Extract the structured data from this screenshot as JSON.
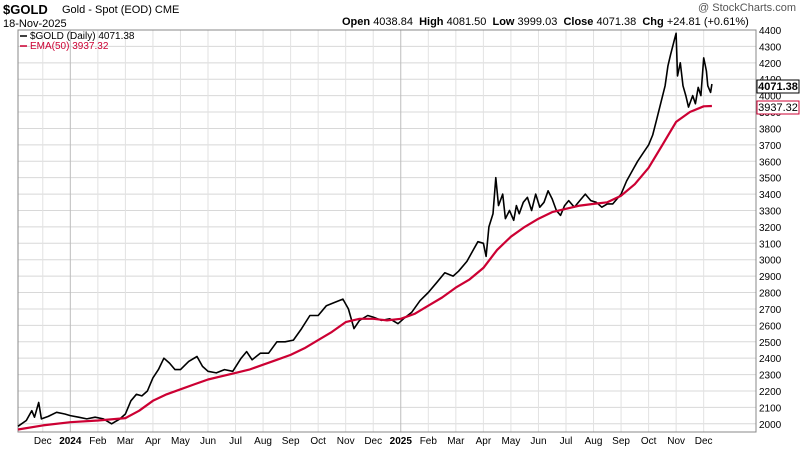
{
  "header": {
    "ticker": "$GOLD",
    "description": "Gold - Spot (EOD)",
    "exchange": "CME",
    "date": "18-Nov-2025",
    "copyright": "@ StockCharts.com",
    "open_label": "Open",
    "open": "4038.84",
    "high_label": "High",
    "high": "4081.50",
    "low_label": "Low",
    "low": "3999.03",
    "close_label": "Close",
    "close": "4071.38",
    "chg_label": "Chg",
    "chg": "+24.81 (+0.61%)"
  },
  "chart_data": {
    "type": "line",
    "title": "$GOLD (Daily) 4071.38",
    "xlabel": "",
    "ylabel": "",
    "ylim": [
      1950,
      4400
    ],
    "y_ticks": [
      2000,
      2100,
      2200,
      2300,
      2400,
      2500,
      2600,
      2700,
      2800,
      2900,
      3000,
      3100,
      3200,
      3300,
      3400,
      3500,
      3600,
      3700,
      3800,
      3900,
      4000,
      4100,
      4200,
      4300,
      4400
    ],
    "x_range_months": [
      -0.9,
      25.9
    ],
    "x_ticks": [
      {
        "label": "Dec",
        "m": 0,
        "bold": false
      },
      {
        "label": "2024",
        "m": 1,
        "bold": true
      },
      {
        "label": "Feb",
        "m": 2,
        "bold": false
      },
      {
        "label": "Mar",
        "m": 3,
        "bold": false
      },
      {
        "label": "Apr",
        "m": 4,
        "bold": false
      },
      {
        "label": "May",
        "m": 5,
        "bold": false
      },
      {
        "label": "Jun",
        "m": 6,
        "bold": false
      },
      {
        "label": "Jul",
        "m": 7,
        "bold": false
      },
      {
        "label": "Aug",
        "m": 8,
        "bold": false
      },
      {
        "label": "Sep",
        "m": 9,
        "bold": false
      },
      {
        "label": "Oct",
        "m": 10,
        "bold": false
      },
      {
        "label": "Nov",
        "m": 11,
        "bold": false
      },
      {
        "label": "Dec",
        "m": 12,
        "bold": false
      },
      {
        "label": "2025",
        "m": 13,
        "bold": true
      },
      {
        "label": "Feb",
        "m": 14,
        "bold": false
      },
      {
        "label": "Mar",
        "m": 15,
        "bold": false
      },
      {
        "label": "Apr",
        "m": 16,
        "bold": false
      },
      {
        "label": "May",
        "m": 17,
        "bold": false
      },
      {
        "label": "Jun",
        "m": 18,
        "bold": false
      },
      {
        "label": "Jul",
        "m": 19,
        "bold": false
      },
      {
        "label": "Aug",
        "m": 20,
        "bold": false
      },
      {
        "label": "Sep",
        "m": 21,
        "bold": false
      },
      {
        "label": "Oct",
        "m": 22,
        "bold": false
      },
      {
        "label": "Nov",
        "m": 23,
        "bold": false
      },
      {
        "label": "Dec",
        "m": 24,
        "bold": false
      }
    ],
    "series": [
      {
        "name": "$GOLD (Daily) 4071.38",
        "label_value": "4071.38",
        "color": "#000000",
        "points": [
          [
            -0.9,
            1985
          ],
          [
            -0.6,
            2020
          ],
          [
            -0.4,
            2080
          ],
          [
            -0.3,
            2040
          ],
          [
            -0.15,
            2130
          ],
          [
            -0.05,
            2030
          ],
          [
            0.2,
            2045
          ],
          [
            0.5,
            2070
          ],
          [
            0.8,
            2060
          ],
          [
            1.0,
            2050
          ],
          [
            1.3,
            2040
          ],
          [
            1.6,
            2030
          ],
          [
            1.9,
            2040
          ],
          [
            2.2,
            2030
          ],
          [
            2.5,
            2000
          ],
          [
            2.8,
            2030
          ],
          [
            3.0,
            2060
          ],
          [
            3.2,
            2140
          ],
          [
            3.4,
            2180
          ],
          [
            3.6,
            2170
          ],
          [
            3.8,
            2200
          ],
          [
            4.0,
            2280
          ],
          [
            4.2,
            2330
          ],
          [
            4.4,
            2400
          ],
          [
            4.6,
            2370
          ],
          [
            4.8,
            2330
          ],
          [
            5.0,
            2330
          ],
          [
            5.3,
            2380
          ],
          [
            5.6,
            2410
          ],
          [
            5.8,
            2350
          ],
          [
            6.0,
            2320
          ],
          [
            6.3,
            2310
          ],
          [
            6.6,
            2330
          ],
          [
            6.9,
            2320
          ],
          [
            7.2,
            2400
          ],
          [
            7.4,
            2440
          ],
          [
            7.6,
            2390
          ],
          [
            7.9,
            2430
          ],
          [
            8.2,
            2430
          ],
          [
            8.5,
            2500
          ],
          [
            8.8,
            2500
          ],
          [
            9.1,
            2510
          ],
          [
            9.4,
            2580
          ],
          [
            9.7,
            2660
          ],
          [
            10.0,
            2660
          ],
          [
            10.3,
            2720
          ],
          [
            10.6,
            2740
          ],
          [
            10.9,
            2760
          ],
          [
            11.1,
            2700
          ],
          [
            11.3,
            2580
          ],
          [
            11.5,
            2630
          ],
          [
            11.8,
            2660
          ],
          [
            12.0,
            2650
          ],
          [
            12.3,
            2630
          ],
          [
            12.6,
            2640
          ],
          [
            12.9,
            2610
          ],
          [
            13.1,
            2640
          ],
          [
            13.4,
            2680
          ],
          [
            13.7,
            2750
          ],
          [
            14.0,
            2800
          ],
          [
            14.3,
            2860
          ],
          [
            14.6,
            2920
          ],
          [
            14.9,
            2900
          ],
          [
            15.1,
            2930
          ],
          [
            15.4,
            2990
          ],
          [
            15.6,
            3050
          ],
          [
            15.8,
            3110
          ],
          [
            16.0,
            3100
          ],
          [
            16.1,
            3020
          ],
          [
            16.2,
            3200
          ],
          [
            16.35,
            3280
          ],
          [
            16.45,
            3500
          ],
          [
            16.55,
            3330
          ],
          [
            16.7,
            3400
          ],
          [
            16.8,
            3250
          ],
          [
            16.95,
            3300
          ],
          [
            17.1,
            3240
          ],
          [
            17.2,
            3330
          ],
          [
            17.3,
            3280
          ],
          [
            17.45,
            3350
          ],
          [
            17.6,
            3380
          ],
          [
            17.75,
            3300
          ],
          [
            17.9,
            3400
          ],
          [
            18.05,
            3320
          ],
          [
            18.2,
            3350
          ],
          [
            18.35,
            3420
          ],
          [
            18.5,
            3370
          ],
          [
            18.65,
            3300
          ],
          [
            18.8,
            3270
          ],
          [
            18.95,
            3330
          ],
          [
            19.1,
            3360
          ],
          [
            19.3,
            3320
          ],
          [
            19.5,
            3360
          ],
          [
            19.7,
            3400
          ],
          [
            19.9,
            3360
          ],
          [
            20.1,
            3350
          ],
          [
            20.3,
            3320
          ],
          [
            20.5,
            3340
          ],
          [
            20.7,
            3340
          ],
          [
            20.85,
            3370
          ],
          [
            21.0,
            3400
          ],
          [
            21.2,
            3480
          ],
          [
            21.4,
            3540
          ],
          [
            21.6,
            3600
          ],
          [
            21.8,
            3650
          ],
          [
            22.0,
            3700
          ],
          [
            22.15,
            3760
          ],
          [
            22.3,
            3860
          ],
          [
            22.45,
            3960
          ],
          [
            22.6,
            4060
          ],
          [
            22.7,
            4180
          ],
          [
            22.8,
            4250
          ],
          [
            22.95,
            4350
          ],
          [
            23.0,
            4380
          ],
          [
            23.05,
            4120
          ],
          [
            23.15,
            4200
          ],
          [
            23.25,
            4060
          ],
          [
            23.35,
            4000
          ],
          [
            23.45,
            3930
          ],
          [
            23.6,
            4000
          ],
          [
            23.7,
            3950
          ],
          [
            23.8,
            4050
          ],
          [
            23.9,
            4000
          ],
          [
            24.0,
            4230
          ],
          [
            24.05,
            4190
          ],
          [
            24.1,
            4150
          ],
          [
            24.15,
            4060
          ],
          [
            24.25,
            4020
          ],
          [
            24.3,
            4071
          ]
        ]
      },
      {
        "name": "EMA(50) 3937.32",
        "label_value": "3937.32",
        "color": "#cc0033",
        "points": [
          [
            -0.9,
            1965
          ],
          [
            0.0,
            1990
          ],
          [
            1.0,
            2010
          ],
          [
            2.0,
            2020
          ],
          [
            3.0,
            2035
          ],
          [
            3.5,
            2080
          ],
          [
            4.0,
            2140
          ],
          [
            4.5,
            2180
          ],
          [
            5.0,
            2210
          ],
          [
            5.5,
            2240
          ],
          [
            6.0,
            2270
          ],
          [
            6.5,
            2290
          ],
          [
            7.0,
            2310
          ],
          [
            7.5,
            2330
          ],
          [
            8.0,
            2360
          ],
          [
            8.5,
            2390
          ],
          [
            9.0,
            2420
          ],
          [
            9.5,
            2460
          ],
          [
            10.0,
            2510
          ],
          [
            10.5,
            2560
          ],
          [
            11.0,
            2620
          ],
          [
            11.5,
            2640
          ],
          [
            12.0,
            2640
          ],
          [
            12.5,
            2630
          ],
          [
            13.0,
            2640
          ],
          [
            13.5,
            2670
          ],
          [
            14.0,
            2720
          ],
          [
            14.5,
            2770
          ],
          [
            15.0,
            2830
          ],
          [
            15.5,
            2880
          ],
          [
            16.0,
            2950
          ],
          [
            16.5,
            3060
          ],
          [
            17.0,
            3140
          ],
          [
            17.5,
            3200
          ],
          [
            18.0,
            3250
          ],
          [
            18.5,
            3290
          ],
          [
            19.0,
            3310
          ],
          [
            19.5,
            3330
          ],
          [
            20.0,
            3340
          ],
          [
            20.5,
            3350
          ],
          [
            21.0,
            3390
          ],
          [
            21.5,
            3460
          ],
          [
            22.0,
            3560
          ],
          [
            22.5,
            3700
          ],
          [
            23.0,
            3840
          ],
          [
            23.5,
            3900
          ],
          [
            24.0,
            3935
          ],
          [
            24.3,
            3937
          ]
        ]
      }
    ]
  }
}
